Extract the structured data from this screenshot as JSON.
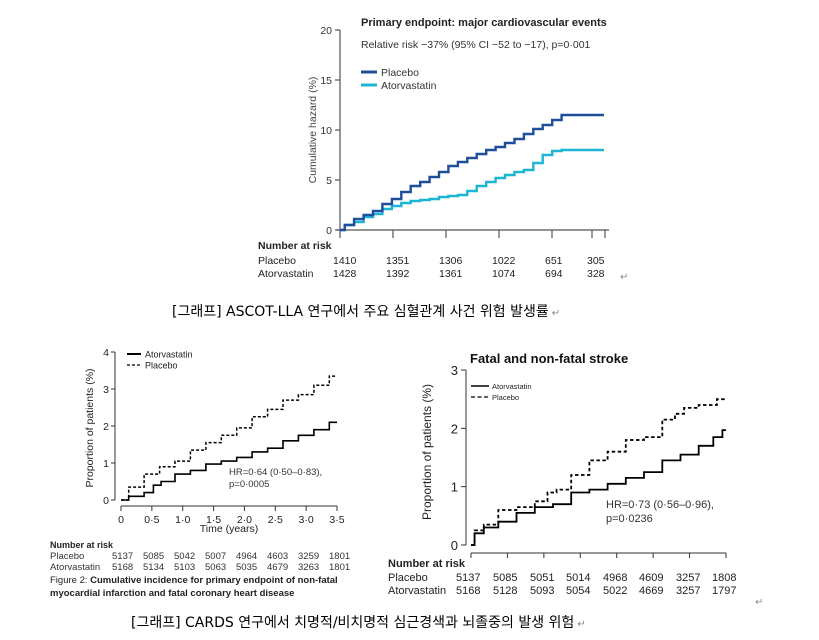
{
  "captions": {
    "top": "[그래프] ASCOT-LLA 연구에서 주요 심혈관계 사건 위험 발생률",
    "bottom": "[그래프] CARDS 연구에서 치명적/비치명적 심근경색과 뇌졸중의 발생 위험",
    "return_mark": "↵"
  },
  "chart_data": [
    {
      "id": "ascot",
      "type": "line",
      "title": "Primary endpoint: major cardiovascular events",
      "subtitle": "Relative risk  −37% (95% CI −52 to −17), p=0·001",
      "xlabel": "",
      "ylabel": "Cumulative hazard (%)",
      "ylim": [
        0,
        20
      ],
      "yticks": [
        "0",
        "5",
        "10",
        "15",
        "20"
      ],
      "ytick_values": [
        0,
        5,
        10,
        15,
        20
      ],
      "xlim": [
        0,
        3.5
      ],
      "xtick_values": [
        0,
        0.5,
        1.0,
        1.5,
        2.0,
        2.5,
        2.75
      ],
      "xtick_labels": [],
      "legend_position": "top-left",
      "series": [
        {
          "name": "Placebo",
          "color": "#1f4e9b",
          "style": "solid",
          "x": [
            0,
            0.1,
            0.2,
            0.3,
            0.4,
            0.5,
            0.6,
            0.7,
            0.8,
            0.9,
            1.0,
            1.1,
            1.2,
            1.3,
            1.4,
            1.5,
            1.6,
            1.7,
            1.8,
            1.9,
            2.0,
            2.1,
            2.2,
            2.3,
            2.4,
            2.5,
            2.6,
            2.7,
            2.8
          ],
          "y": [
            0,
            0.5,
            1.1,
            1.5,
            1.9,
            2.6,
            3.1,
            3.8,
            4.4,
            4.8,
            5.3,
            5.8,
            6.4,
            6.8,
            7.2,
            7.6,
            8.0,
            8.3,
            8.7,
            9.1,
            9.6,
            10.1,
            10.5,
            11.0,
            11.5,
            11.5,
            11.5,
            11.5,
            11.5
          ]
        },
        {
          "name": "Atorvastatin",
          "color": "#1cb5d4",
          "style": "solid",
          "x": [
            0,
            0.1,
            0.2,
            0.3,
            0.4,
            0.5,
            0.6,
            0.7,
            0.8,
            0.9,
            1.0,
            1.1,
            1.2,
            1.3,
            1.4,
            1.5,
            1.6,
            1.7,
            1.8,
            1.9,
            2.0,
            2.1,
            2.2,
            2.3,
            2.4,
            2.5,
            2.6,
            2.7,
            2.8
          ],
          "y": [
            0,
            0.5,
            0.8,
            1.3,
            1.6,
            2.1,
            2.4,
            2.7,
            2.9,
            3.0,
            3.1,
            3.3,
            3.4,
            3.5,
            3.9,
            4.4,
            4.8,
            5.2,
            5.5,
            5.8,
            6.0,
            6.7,
            7.5,
            7.9,
            8.0,
            8.0,
            8.0,
            8.0,
            8.0
          ]
        }
      ],
      "number_at_risk": {
        "label": "Number at risk",
        "rows": [
          {
            "name": "Placebo",
            "values": [
              "1410",
              "1351",
              "1306",
              "1022",
              "651",
              "305"
            ]
          },
          {
            "name": "Atorvastatin",
            "values": [
              "1428",
              "1392",
              "1361",
              "1074",
              "694",
              "328"
            ]
          }
        ]
      }
    },
    {
      "id": "cards-chd",
      "type": "line",
      "title": "",
      "xlabel": "Time (years)",
      "ylabel": "Proportion of patients (%)",
      "ylim": [
        0,
        4
      ],
      "yticks": [
        "0",
        "1",
        "2",
        "3",
        "4"
      ],
      "ytick_values": [
        0,
        1,
        2,
        3,
        4
      ],
      "xlim": [
        0,
        3.5
      ],
      "xtick_values": [
        0,
        0.5,
        1.0,
        1.5,
        2.0,
        2.5,
        3.0,
        3.5
      ],
      "xtick_labels": [
        "0",
        "0·5",
        "1·0",
        "1·5",
        "2·0",
        "2·5",
        "3·0",
        "3·5"
      ],
      "legend_position": "top-left",
      "annotation": [
        "HR=0·64 (0·50–0·83),",
        "p=0·0005"
      ],
      "series": [
        {
          "name": "Atorvastatin",
          "color": "#000000",
          "style": "solid",
          "x": [
            0,
            0.25,
            0.5,
            0.55,
            0.75,
            1.0,
            1.25,
            1.5,
            1.75,
            2.0,
            2.25,
            2.5,
            2.75,
            3.0,
            3.25,
            3.5
          ],
          "y": [
            0,
            0.1,
            0.2,
            0.4,
            0.5,
            0.7,
            0.8,
            0.97,
            1.05,
            1.15,
            1.3,
            1.4,
            1.6,
            1.75,
            1.9,
            2.1
          ]
        },
        {
          "name": "Placebo",
          "color": "#000000",
          "style": "dashed",
          "x": [
            0,
            0.25,
            0.5,
            0.75,
            1.0,
            1.25,
            1.5,
            1.75,
            2.0,
            2.25,
            2.5,
            2.75,
            3.0,
            3.25,
            3.5
          ],
          "y": [
            0,
            0.35,
            0.7,
            0.9,
            1.05,
            1.35,
            1.55,
            1.75,
            1.95,
            2.25,
            2.45,
            2.7,
            2.85,
            3.1,
            3.35
          ]
        }
      ],
      "number_at_risk": {
        "label": "Number at risk",
        "rows": [
          {
            "name": "Placebo",
            "values": [
              "5137",
              "5085",
              "5042",
              "5007",
              "4964",
              "4603",
              "3259",
              "1801"
            ]
          },
          {
            "name": "Atorvastatin",
            "values": [
              "5168",
              "5134",
              "5103",
              "5063",
              "5035",
              "4679",
              "3263",
              "1801"
            ]
          }
        ]
      },
      "figure_caption": {
        "prefix": "Figure 2: ",
        "bold_line1": "Cumulative incidence for primary endpoint of non-fatal",
        "bold_line2": "myocardial infarction and fatal coronary heart disease"
      }
    },
    {
      "id": "cards-stroke",
      "type": "line",
      "title": "Fatal and non-fatal stroke",
      "xlabel": "",
      "ylabel": "Proportion of patients (%)",
      "ylim": [
        0,
        3
      ],
      "yticks": [
        "0",
        "1",
        "2",
        "3"
      ],
      "ytick_values": [
        0,
        1,
        2,
        3
      ],
      "xlim": [
        0,
        3.5
      ],
      "xtick_values": [
        0,
        0.5,
        1.0,
        1.5,
        2.0,
        2.5,
        3.0,
        3.5
      ],
      "xtick_labels": [],
      "legend_position": "top-left",
      "annotation": [
        "HR=0·73 (0·56–0·96),",
        "p=0·0236"
      ],
      "series": [
        {
          "name": "Atorvastatin",
          "color": "#000000",
          "style": "solid",
          "x": [
            0,
            0.1,
            0.25,
            0.5,
            0.75,
            1.0,
            1.25,
            1.5,
            1.75,
            2.0,
            2.25,
            2.5,
            2.75,
            3.0,
            3.25,
            3.4,
            3.5
          ],
          "y": [
            0,
            0.2,
            0.3,
            0.4,
            0.55,
            0.65,
            0.7,
            0.9,
            0.95,
            1.05,
            1.15,
            1.25,
            1.45,
            1.55,
            1.7,
            1.85,
            1.97
          ]
        },
        {
          "name": "Placebo",
          "color": "#000000",
          "style": "dashed",
          "x": [
            0,
            0.1,
            0.25,
            0.5,
            0.75,
            1.0,
            1.1,
            1.25,
            1.5,
            1.75,
            2.0,
            2.25,
            2.5,
            2.75,
            2.85,
            3.0,
            3.25,
            3.5
          ],
          "y": [
            0,
            0.25,
            0.35,
            0.6,
            0.65,
            0.75,
            0.9,
            0.95,
            1.2,
            1.45,
            1.6,
            1.8,
            1.85,
            2.15,
            2.25,
            2.35,
            2.4,
            2.5
          ]
        }
      ],
      "number_at_risk": {
        "label": "Number at risk",
        "rows": [
          {
            "name": "Placebo",
            "values": [
              "5137",
              "5085",
              "5051",
              "5014",
              "4968",
              "4609",
              "3257",
              "1808"
            ]
          },
          {
            "name": "Atorvastatin",
            "values": [
              "5168",
              "5128",
              "5093",
              "5054",
              "5022",
              "4669",
              "3257",
              "1797"
            ]
          }
        ]
      }
    }
  ]
}
